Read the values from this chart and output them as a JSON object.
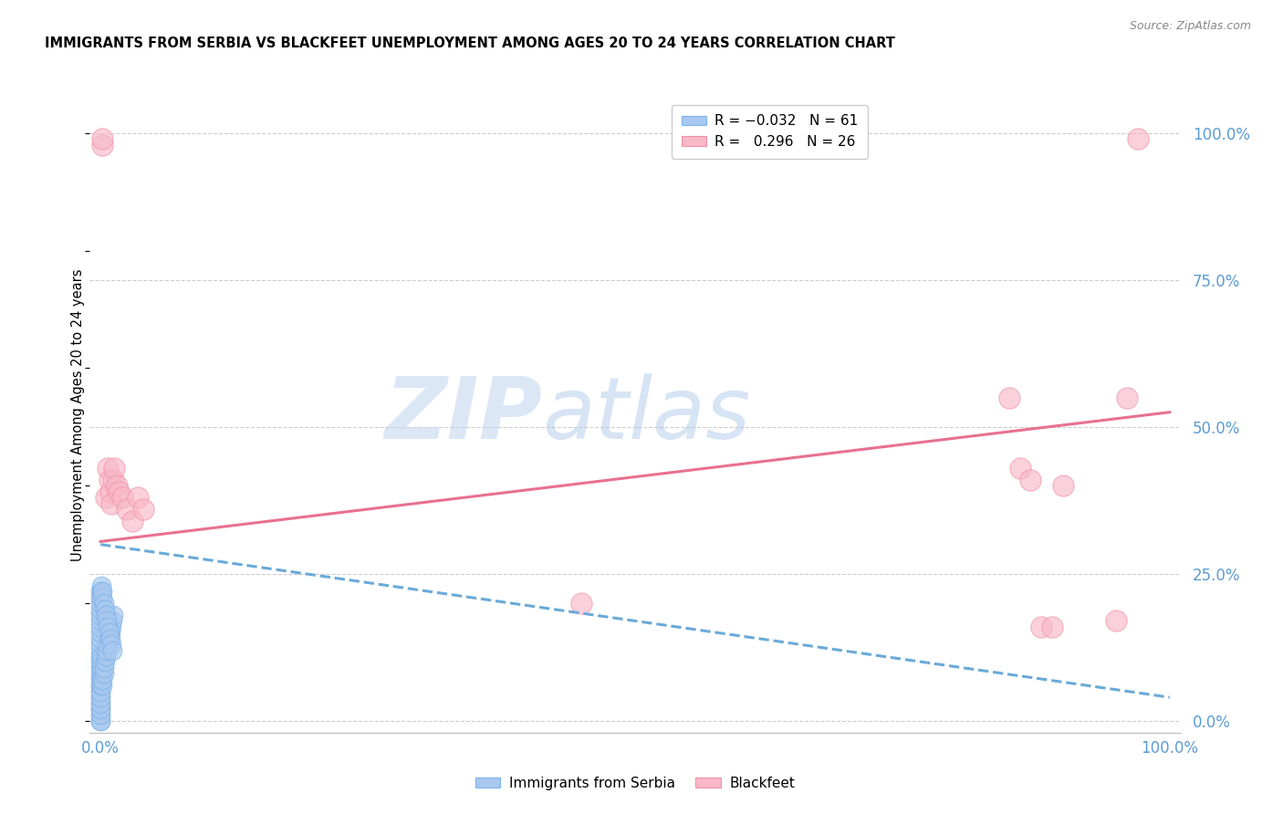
{
  "title": "IMMIGRANTS FROM SERBIA VS BLACKFEET UNEMPLOYMENT AMONG AGES 20 TO 24 YEARS CORRELATION CHART",
  "source": "Source: ZipAtlas.com",
  "ylabel": "Unemployment Among Ages 20 to 24 years",
  "ytick_vals": [
    0.0,
    0.25,
    0.5,
    0.75,
    1.0
  ],
  "ytick_labels": [
    "0.0%",
    "25.0%",
    "50.0%",
    "75.0%",
    "100.0%"
  ],
  "xtick_vals": [
    0.0,
    1.0
  ],
  "xtick_labels": [
    "0.0%",
    "100.0%"
  ],
  "blue_color": "#A8C8F0",
  "blue_edge_color": "#7EB3E8",
  "pink_color": "#F8B8C8",
  "pink_edge_color": "#F090A8",
  "blue_line_color": "#6AAAD8",
  "pink_line_color": "#E87090",
  "tick_color": "#5B9BD5",
  "watermark_zip_color": "#C8D8F0",
  "watermark_atlas_color": "#B8C8E8",
  "serbia_x": [
    0.0,
    0.0,
    0.0,
    0.0,
    0.0,
    0.0,
    0.0,
    0.0,
    0.0,
    0.0,
    0.0,
    0.0,
    0.0,
    0.0,
    0.0,
    0.0,
    0.0,
    0.0,
    0.0,
    0.0,
    0.0,
    0.0,
    0.0,
    0.0,
    0.0,
    0.0,
    0.0,
    0.0,
    0.0,
    0.0,
    0.001,
    0.001,
    0.001,
    0.001,
    0.001,
    0.002,
    0.002,
    0.003,
    0.003,
    0.004,
    0.005,
    0.006,
    0.007,
    0.008,
    0.009,
    0.01,
    0.011,
    0.012,
    0.001,
    0.001,
    0.002,
    0.002,
    0.003,
    0.004,
    0.005,
    0.006,
    0.007,
    0.008,
    0.009,
    0.01,
    0.011
  ],
  "serbia_y": [
    0.0,
    0.01,
    0.02,
    0.03,
    0.04,
    0.05,
    0.06,
    0.07,
    0.08,
    0.09,
    0.1,
    0.11,
    0.12,
    0.13,
    0.14,
    0.15,
    0.16,
    0.17,
    0.18,
    0.19,
    0.2,
    0.21,
    0.22,
    0.0,
    0.01,
    0.02,
    0.03,
    0.04,
    0.05,
    0.06,
    0.07,
    0.08,
    0.09,
    0.1,
    0.11,
    0.06,
    0.07,
    0.08,
    0.09,
    0.1,
    0.11,
    0.12,
    0.13,
    0.14,
    0.15,
    0.16,
    0.17,
    0.18,
    0.22,
    0.23,
    0.21,
    0.22,
    0.2,
    0.19,
    0.18,
    0.17,
    0.16,
    0.15,
    0.14,
    0.13,
    0.12
  ],
  "blackfeet_x": [
    0.002,
    0.002,
    0.005,
    0.007,
    0.008,
    0.009,
    0.01,
    0.012,
    0.013,
    0.015,
    0.017,
    0.02,
    0.025,
    0.03,
    0.035,
    0.04,
    0.45,
    0.85,
    0.86,
    0.87,
    0.88,
    0.89,
    0.9,
    0.95,
    0.96,
    0.97
  ],
  "blackfeet_y": [
    0.98,
    0.99,
    0.38,
    0.43,
    0.41,
    0.39,
    0.37,
    0.41,
    0.43,
    0.4,
    0.39,
    0.38,
    0.36,
    0.34,
    0.38,
    0.36,
    0.2,
    0.55,
    0.43,
    0.41,
    0.16,
    0.16,
    0.4,
    0.17,
    0.55,
    0.99
  ],
  "serbia_line_x0": 0.0,
  "serbia_line_x1": 1.0,
  "serbia_line_y0": 0.3,
  "serbia_line_y1": 0.04,
  "blackfeet_line_x0": 0.0,
  "blackfeet_line_x1": 1.0,
  "blackfeet_line_y0": 0.305,
  "blackfeet_line_y1": 0.525
}
